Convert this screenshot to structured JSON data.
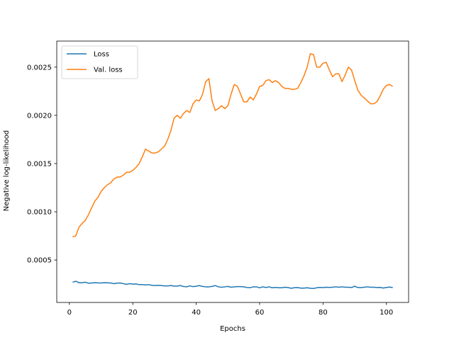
{
  "chart_data": {
    "type": "line",
    "title": "",
    "xlabel": "Epochs",
    "ylabel": "Negative log-likelihood",
    "xlim": [
      -4,
      107
    ],
    "ylim": [
      6e-05,
      0.00277
    ],
    "xticks": [
      0,
      20,
      40,
      60,
      80,
      100
    ],
    "xtick_labels": [
      "0",
      "20",
      "40",
      "60",
      "80",
      "100"
    ],
    "yticks": [
      0.0005,
      0.001,
      0.0015,
      0.002,
      0.0025
    ],
    "ytick_labels": [
      "0.0005",
      "0.0010",
      "0.0015",
      "0.0020",
      "0.0025"
    ],
    "grid": false,
    "legend": {
      "position": "top-left"
    },
    "series": [
      {
        "name": "Loss",
        "color": "#1f77b4",
        "x": [
          1,
          2,
          3,
          4,
          5,
          6,
          7,
          8,
          9,
          10,
          11,
          12,
          13,
          14,
          15,
          16,
          17,
          18,
          19,
          20,
          21,
          22,
          23,
          24,
          25,
          26,
          27,
          28,
          29,
          30,
          31,
          32,
          33,
          34,
          35,
          36,
          37,
          38,
          39,
          40,
          41,
          42,
          43,
          44,
          45,
          46,
          47,
          48,
          49,
          50,
          51,
          52,
          53,
          54,
          55,
          56,
          57,
          58,
          59,
          60,
          61,
          62,
          63,
          64,
          65,
          66,
          67,
          68,
          69,
          70,
          71,
          72,
          73,
          74,
          75,
          76,
          77,
          78,
          79,
          80,
          81,
          82,
          83,
          84,
          85,
          86,
          87,
          88,
          89,
          90,
          91,
          92,
          93,
          94,
          95,
          96,
          97,
          98,
          99,
          100,
          101,
          102
        ],
        "y": [
          0.00027,
          0.00028,
          0.000265,
          0.000265,
          0.00027,
          0.00026,
          0.000262,
          0.000265,
          0.000263,
          0.000262,
          0.000265,
          0.000264,
          0.000262,
          0.000255,
          0.00026,
          0.000262,
          0.000255,
          0.000248,
          0.000255,
          0.00025,
          0.000252,
          0.000245,
          0.000245,
          0.000242,
          0.000245,
          0.000238,
          0.000235,
          0.000238,
          0.000235,
          0.000232,
          0.000232,
          0.000235,
          0.00023,
          0.00023,
          0.000235,
          0.000225,
          0.000222,
          0.000232,
          0.000224,
          0.000228,
          0.000235,
          0.000226,
          0.000222,
          0.000222,
          0.000226,
          0.000235,
          0.000222,
          0.000218,
          0.000222,
          0.000226,
          0.000218,
          0.000222,
          0.000224,
          0.000224,
          0.000222,
          0.000215,
          0.000213,
          0.000222,
          0.000222,
          0.000212,
          0.000222,
          0.000215,
          0.000222,
          0.000212,
          0.000216,
          0.000212,
          0.000212,
          0.000218,
          0.000214,
          0.000207,
          0.000213,
          0.000214,
          0.000209,
          0.000209,
          0.000212,
          0.000207,
          0.000205,
          0.000212,
          0.000216,
          0.000214,
          0.000218,
          0.000216,
          0.000218,
          0.000222,
          0.000218,
          0.000222,
          0.000218,
          0.000218,
          0.000215,
          0.000228,
          0.000215,
          0.000214,
          0.000218,
          0.000222,
          0.000218,
          0.000218,
          0.000215,
          0.000216,
          0.00021,
          0.000215,
          0.00022,
          0.000214
        ]
      },
      {
        "name": "Val. loss",
        "color": "#ff7f0e",
        "x": [
          1,
          2,
          3,
          4,
          5,
          6,
          7,
          8,
          9,
          10,
          11,
          12,
          13,
          14,
          15,
          16,
          17,
          18,
          19,
          20,
          21,
          22,
          23,
          24,
          25,
          26,
          27,
          28,
          29,
          30,
          31,
          32,
          33,
          34,
          35,
          36,
          37,
          38,
          39,
          40,
          41,
          42,
          43,
          44,
          45,
          46,
          47,
          48,
          49,
          50,
          51,
          52,
          53,
          54,
          55,
          56,
          57,
          58,
          59,
          60,
          61,
          62,
          63,
          64,
          65,
          66,
          67,
          68,
          69,
          70,
          71,
          72,
          73,
          74,
          75,
          76,
          77,
          78,
          79,
          80,
          81,
          82,
          83,
          84,
          85,
          86,
          87,
          88,
          89,
          90,
          91,
          92,
          93,
          94,
          95,
          96,
          97,
          98,
          99,
          100,
          101,
          102
        ],
        "y": [
          0.00074,
          0.00075,
          0.00084,
          0.00088,
          0.00091,
          0.00097,
          0.00104,
          0.00111,
          0.00115,
          0.00121,
          0.00125,
          0.00128,
          0.0013,
          0.00134,
          0.00136,
          0.00136,
          0.00138,
          0.00141,
          0.00141,
          0.00143,
          0.00146,
          0.0015,
          0.00157,
          0.00165,
          0.00163,
          0.00161,
          0.00161,
          0.00162,
          0.00165,
          0.00168,
          0.00175,
          0.00184,
          0.00197,
          0.002,
          0.00197,
          0.00202,
          0.00205,
          0.00203,
          0.00212,
          0.00216,
          0.00215,
          0.00222,
          0.00235,
          0.00238,
          0.00215,
          0.00205,
          0.00207,
          0.0021,
          0.00207,
          0.0021,
          0.00222,
          0.00232,
          0.0023,
          0.00222,
          0.00214,
          0.00214,
          0.00219,
          0.00216,
          0.00222,
          0.0023,
          0.00231,
          0.00236,
          0.00237,
          0.00234,
          0.00236,
          0.00234,
          0.0023,
          0.00228,
          0.00228,
          0.00227,
          0.00227,
          0.00228,
          0.00234,
          0.00241,
          0.0025,
          0.00264,
          0.00263,
          0.0025,
          0.0025,
          0.00254,
          0.00255,
          0.00247,
          0.0024,
          0.00243,
          0.00243,
          0.00235,
          0.00242,
          0.0025,
          0.00247,
          0.00236,
          0.00226,
          0.00221,
          0.00218,
          0.00215,
          0.00212,
          0.00212,
          0.00214,
          0.0022,
          0.00227,
          0.00231,
          0.00232,
          0.0023
        ]
      }
    ]
  }
}
